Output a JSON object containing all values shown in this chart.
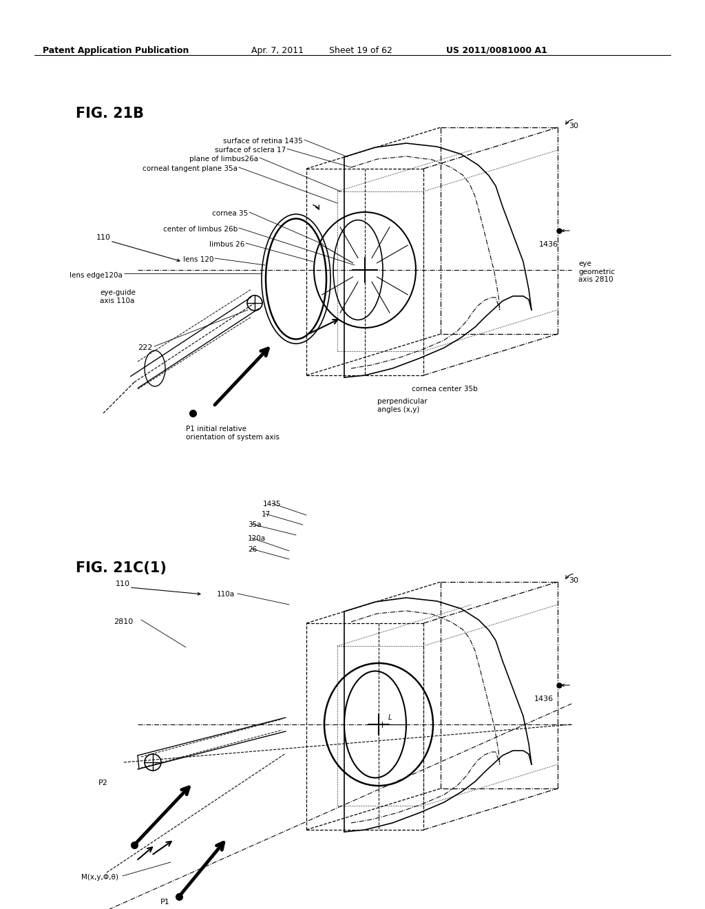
{
  "background_color": "#ffffff",
  "header_text": "Patent Application Publication",
  "header_date": "Apr. 7, 2011",
  "header_sheet": "Sheet 19 of 62",
  "header_patent": "US 2011/0081000 A1",
  "fig21b_title": "FIG. 21B",
  "fig21c_title": "FIG. 21C(1)",
  "line_color": "#000000",
  "dash_color": "#000000"
}
